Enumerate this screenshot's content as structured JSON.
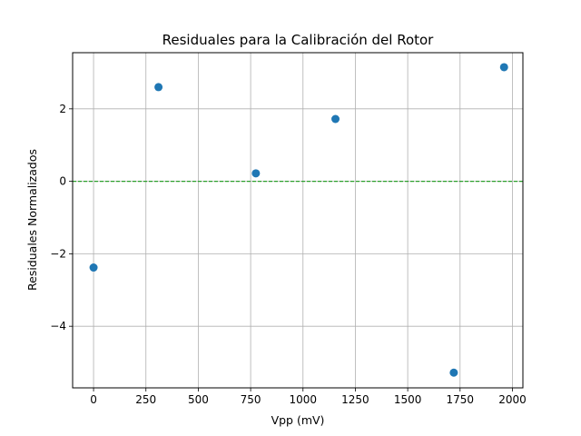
{
  "chart_data": {
    "type": "scatter",
    "title": "Residuales para la Calibración del Rotor",
    "xlabel": "Vpp (mV)",
    "ylabel": "Residuales Normalizados",
    "xlim": [
      -100,
      2050
    ],
    "ylim": [
      -5.7,
      3.55
    ],
    "xticks": [
      0,
      250,
      500,
      750,
      1000,
      1250,
      1500,
      1750,
      2000
    ],
    "yticks": [
      -4,
      -2,
      0,
      2
    ],
    "grid": true,
    "reference_line": {
      "y": 0,
      "style": "dashed",
      "color": "#2ca02c"
    },
    "series": [
      {
        "color": "#1f77b4",
        "x": [
          0,
          310,
          775,
          1155,
          1720,
          1960
        ],
        "y": [
          -2.38,
          2.6,
          0.22,
          1.72,
          -5.28,
          3.15
        ]
      }
    ]
  }
}
